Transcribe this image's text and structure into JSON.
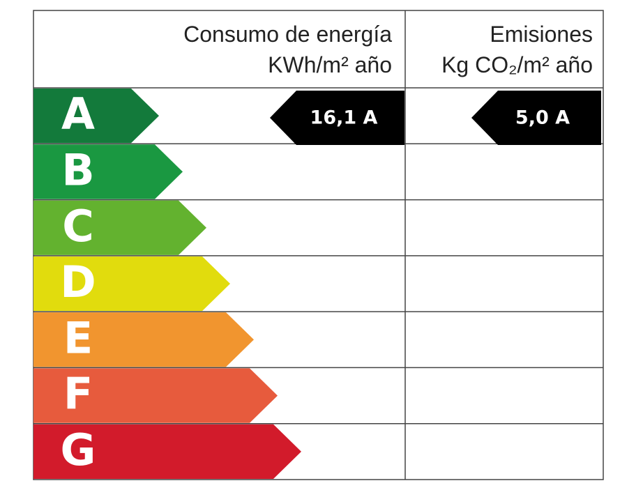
{
  "header": {
    "energy_title": "Consumo de energía",
    "energy_unit": "KWh/m² año",
    "emissions_title": "Emisiones",
    "emissions_unit": "Kg CO₂/m² año"
  },
  "classes": [
    {
      "letter": "A",
      "color": "#137a3b"
    },
    {
      "letter": "B",
      "color": "#1a9841"
    },
    {
      "letter": "C",
      "color": "#63b22f"
    },
    {
      "letter": "D",
      "color": "#e1dc0d"
    },
    {
      "letter": "E",
      "color": "#f1952f"
    },
    {
      "letter": "F",
      "color": "#e75b3d"
    },
    {
      "letter": "G",
      "color": "#d21b2b"
    }
  ],
  "energy_rating": "16,1 A",
  "emissions_rating": "5,0 A"
}
